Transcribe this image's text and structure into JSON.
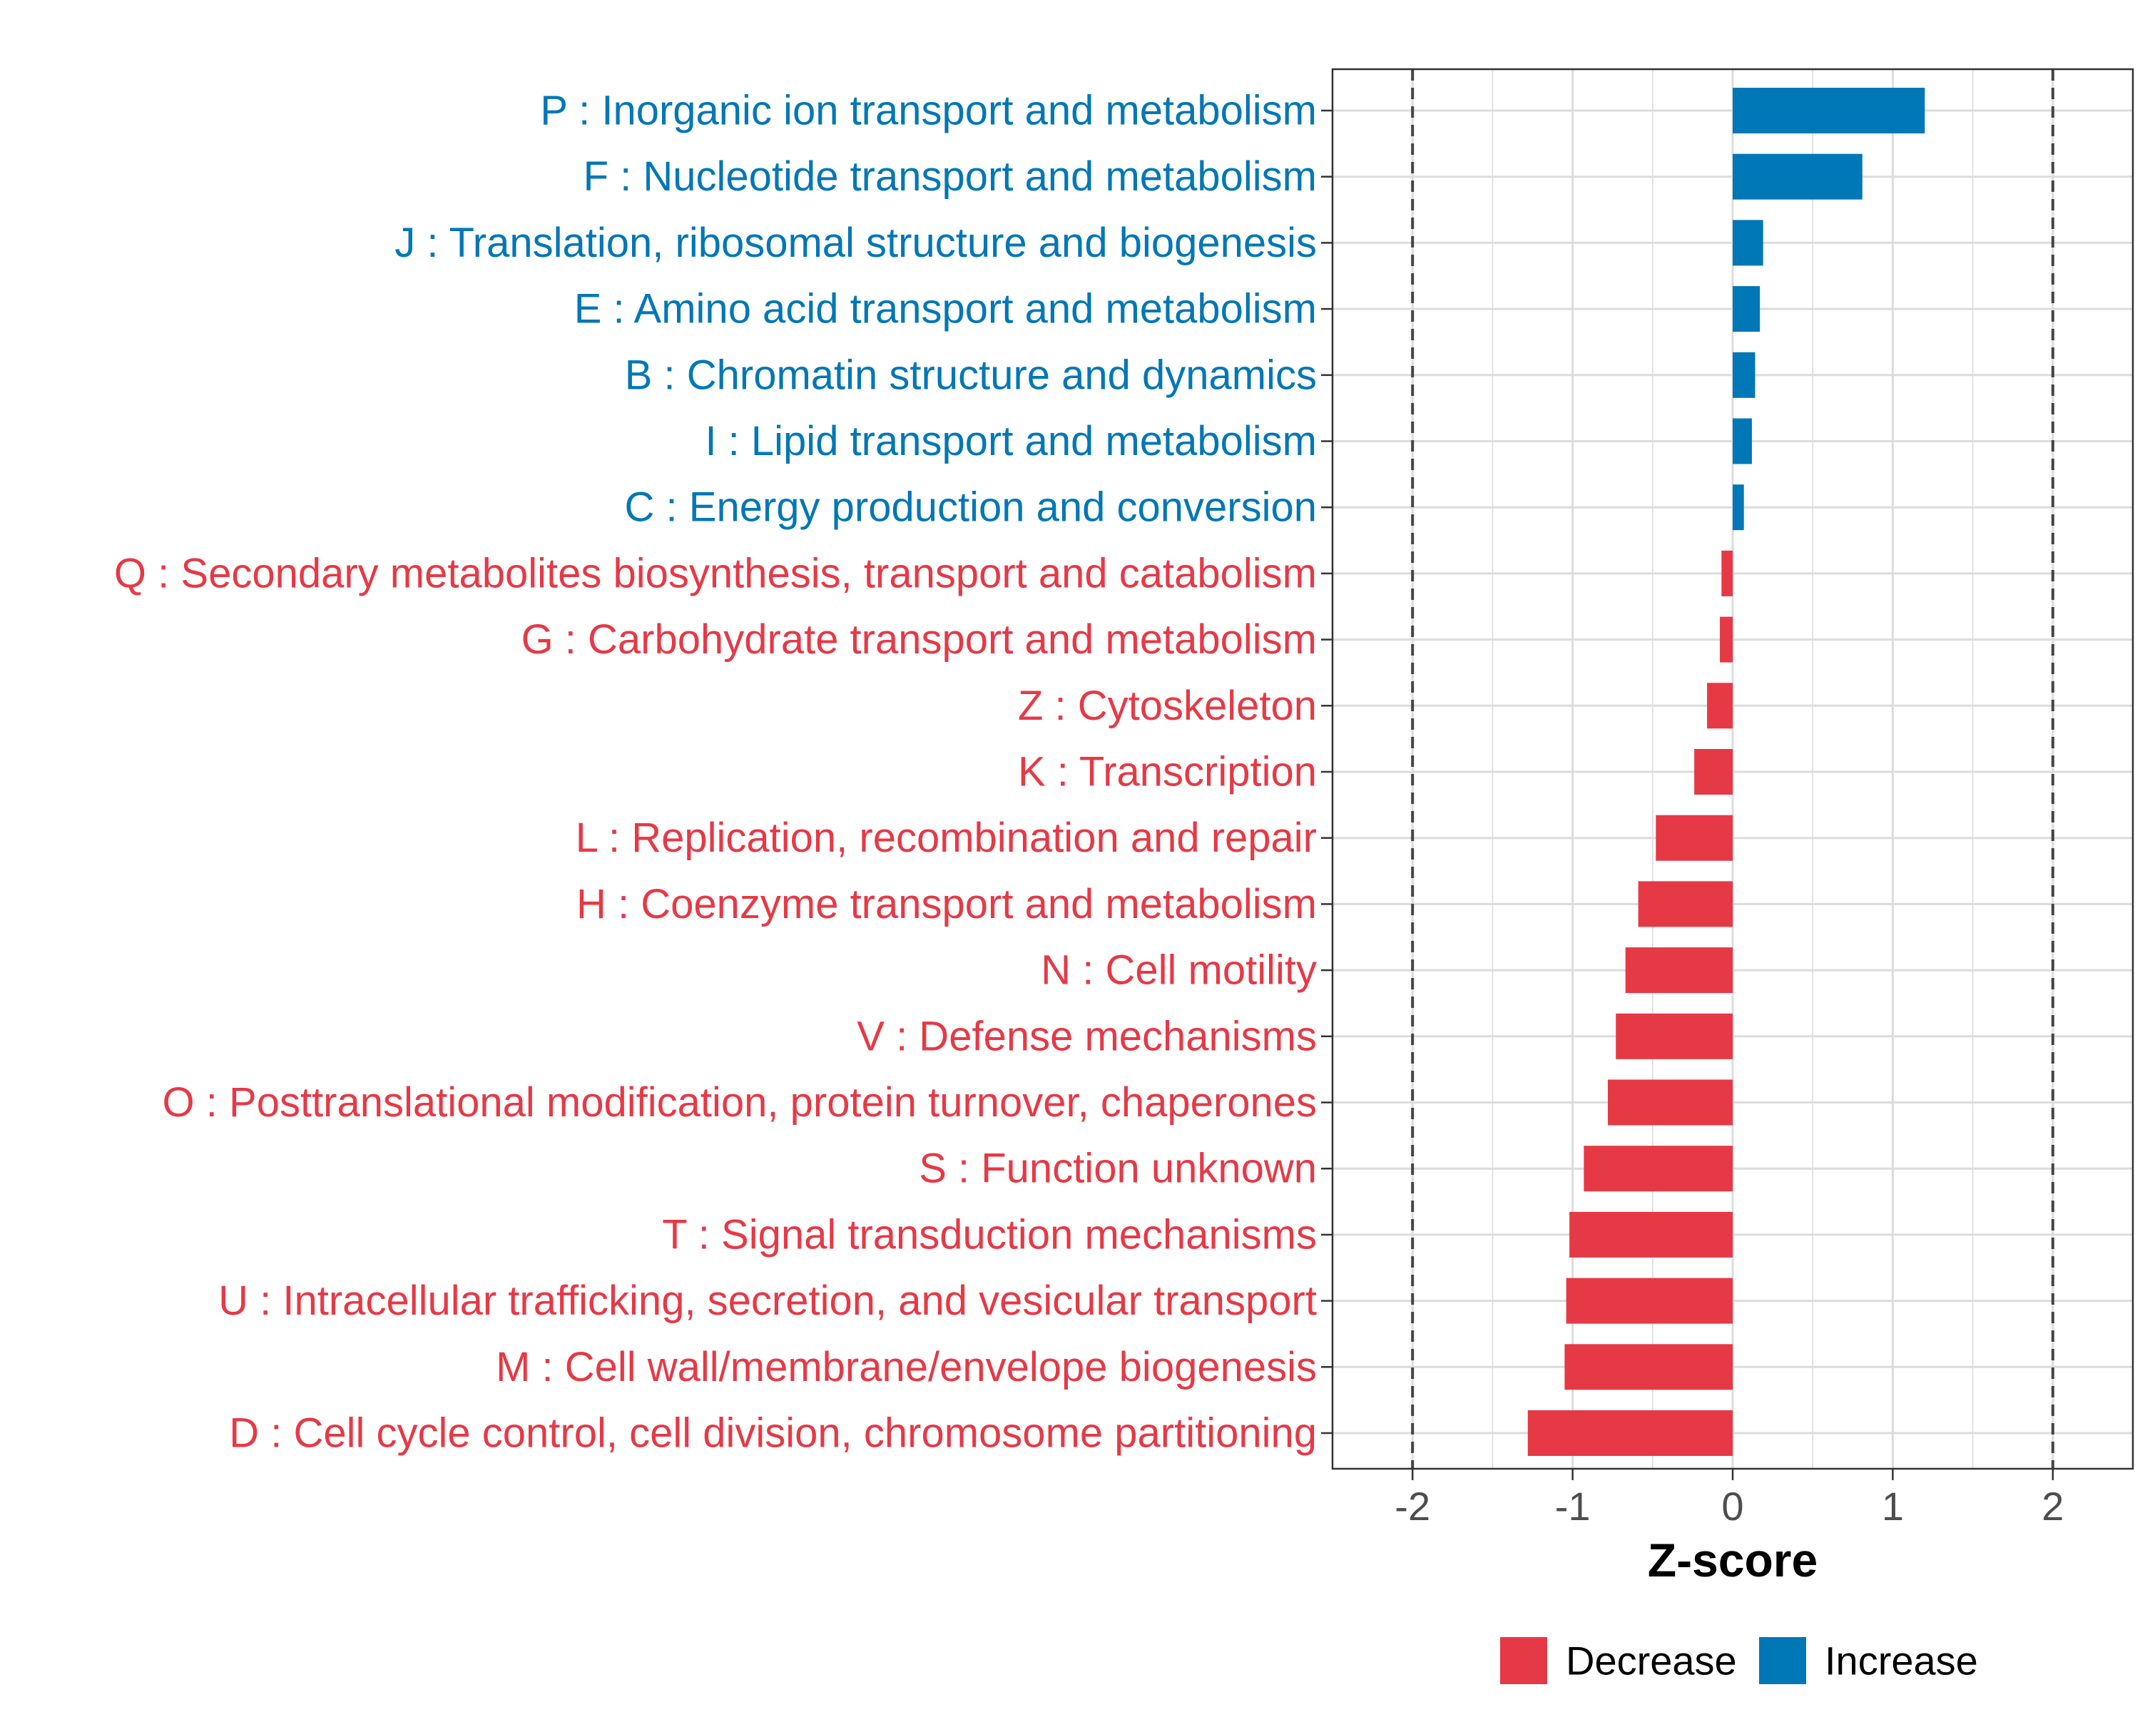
{
  "chart_data": {
    "type": "bar",
    "orientation": "horizontal",
    "xlabel": "Z-score",
    "xlim": [
      -2.5,
      2.5
    ],
    "xticks": [
      -2,
      -1,
      0,
      1,
      2
    ],
    "tick_labels": [
      "-2",
      "-1",
      "0",
      "1",
      "2"
    ],
    "reference_lines": [
      -2,
      2
    ],
    "grid": true,
    "legend": {
      "position": "bottom",
      "entries": [
        {
          "label": "Decrease",
          "color": "#e63946"
        },
        {
          "label": "Increase",
          "color": "#0077b6"
        }
      ]
    },
    "categories": [
      {
        "label": "P : Inorganic ion transport and metabolism",
        "value": 1.2,
        "direction": "Increase"
      },
      {
        "label": "F : Nucleotide transport and metabolism",
        "value": 0.81,
        "direction": "Increase"
      },
      {
        "label": "J : Translation, ribosomal structure and biogenesis",
        "value": 0.19,
        "direction": "Increase"
      },
      {
        "label": "E : Amino acid transport and metabolism",
        "value": 0.17,
        "direction": "Increase"
      },
      {
        "label": "B : Chromatin structure and dynamics",
        "value": 0.14,
        "direction": "Increase"
      },
      {
        "label": "I : Lipid transport and metabolism",
        "value": 0.12,
        "direction": "Increase"
      },
      {
        "label": "C : Energy production and conversion",
        "value": 0.07,
        "direction": "Increase"
      },
      {
        "label": "Q : Secondary metabolites biosynthesis, transport and catabolism",
        "value": -0.07,
        "direction": "Decrease"
      },
      {
        "label": "G : Carbohydrate transport and metabolism",
        "value": -0.08,
        "direction": "Decrease"
      },
      {
        "label": "Z : Cytoskeleton",
        "value": -0.16,
        "direction": "Decrease"
      },
      {
        "label": "K : Transcription",
        "value": -0.24,
        "direction": "Decrease"
      },
      {
        "label": "L : Replication, recombination and repair",
        "value": -0.48,
        "direction": "Decrease"
      },
      {
        "label": "H : Coenzyme transport and metabolism",
        "value": -0.59,
        "direction": "Decrease"
      },
      {
        "label": "N : Cell motility",
        "value": -0.67,
        "direction": "Decrease"
      },
      {
        "label": "V : Defense mechanisms",
        "value": -0.73,
        "direction": "Decrease"
      },
      {
        "label": "O : Posttranslational modification, protein turnover, chaperones",
        "value": -0.78,
        "direction": "Decrease"
      },
      {
        "label": "S : Function unknown",
        "value": -0.93,
        "direction": "Decrease"
      },
      {
        "label": "T : Signal transduction mechanisms",
        "value": -1.02,
        "direction": "Decrease"
      },
      {
        "label": "U : Intracellular trafficking, secretion, and vesicular transport",
        "value": -1.04,
        "direction": "Decrease"
      },
      {
        "label": "M : Cell wall/membrane/envelope biogenesis",
        "value": -1.05,
        "direction": "Decrease"
      },
      {
        "label": "D : Cell cycle control, cell division, chromosome partitioning",
        "value": -1.28,
        "direction": "Decrease"
      }
    ]
  }
}
